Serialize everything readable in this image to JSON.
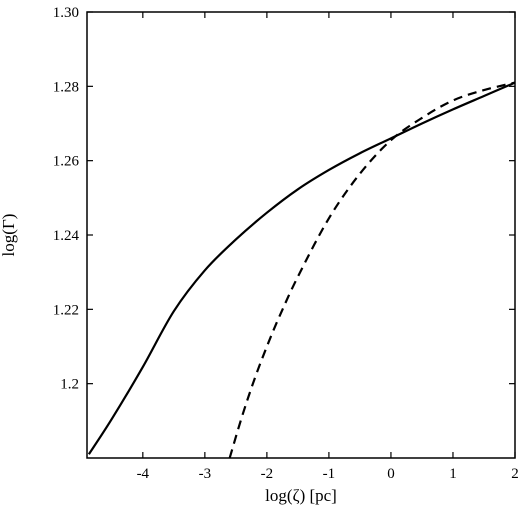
{
  "chart_data": {
    "type": "line",
    "title": "",
    "xlabel": "log(ζ) [pc]",
    "ylabel": "log(Γ)",
    "xlim": [
      -4.9,
      2.0
    ],
    "ylim": [
      1.18,
      1.3
    ],
    "grid": false,
    "legend": "none",
    "xticks": [
      {
        "value": -4,
        "label": "-4"
      },
      {
        "value": -3,
        "label": "-3"
      },
      {
        "value": -2,
        "label": "-2"
      },
      {
        "value": -1,
        "label": "-1"
      },
      {
        "value": 0,
        "label": "0"
      },
      {
        "value": 1,
        "label": "1"
      },
      {
        "value": 2,
        "label": "2"
      }
    ],
    "yticks": [
      {
        "value": 1.2,
        "label": "1.2"
      },
      {
        "value": 1.22,
        "label": "1.22"
      },
      {
        "value": 1.24,
        "label": "1.24"
      },
      {
        "value": 1.26,
        "label": "1.26"
      },
      {
        "value": 1.28,
        "label": "1.28"
      },
      {
        "value": 1.3,
        "label": "1.30"
      }
    ],
    "series": [
      {
        "style": "solid",
        "color": "#000000",
        "x": [
          -4.87,
          -4.5,
          -4.0,
          -3.5,
          -3.0,
          -2.5,
          -2.0,
          -1.5,
          -1.0,
          -0.5,
          0.0,
          0.5,
          1.0,
          1.5,
          2.0
        ],
        "y": [
          1.181,
          1.1905,
          1.2045,
          1.2195,
          1.2305,
          1.2388,
          1.246,
          1.2523,
          1.2575,
          1.262,
          1.266,
          1.27,
          1.2738,
          1.2774,
          1.281
        ]
      },
      {
        "style": "dashed",
        "color": "#000000",
        "x": [
          -2.6,
          -2.4,
          -2.2,
          -2.0,
          -1.8,
          -1.5,
          -1.0,
          -0.5,
          0.0,
          0.5,
          1.0,
          1.5,
          2.0
        ],
        "y": [
          1.18,
          1.1912,
          1.2012,
          1.21,
          1.218,
          1.2288,
          1.2445,
          1.2565,
          1.2655,
          1.2715,
          1.2762,
          1.279,
          1.281
        ]
      }
    ]
  }
}
